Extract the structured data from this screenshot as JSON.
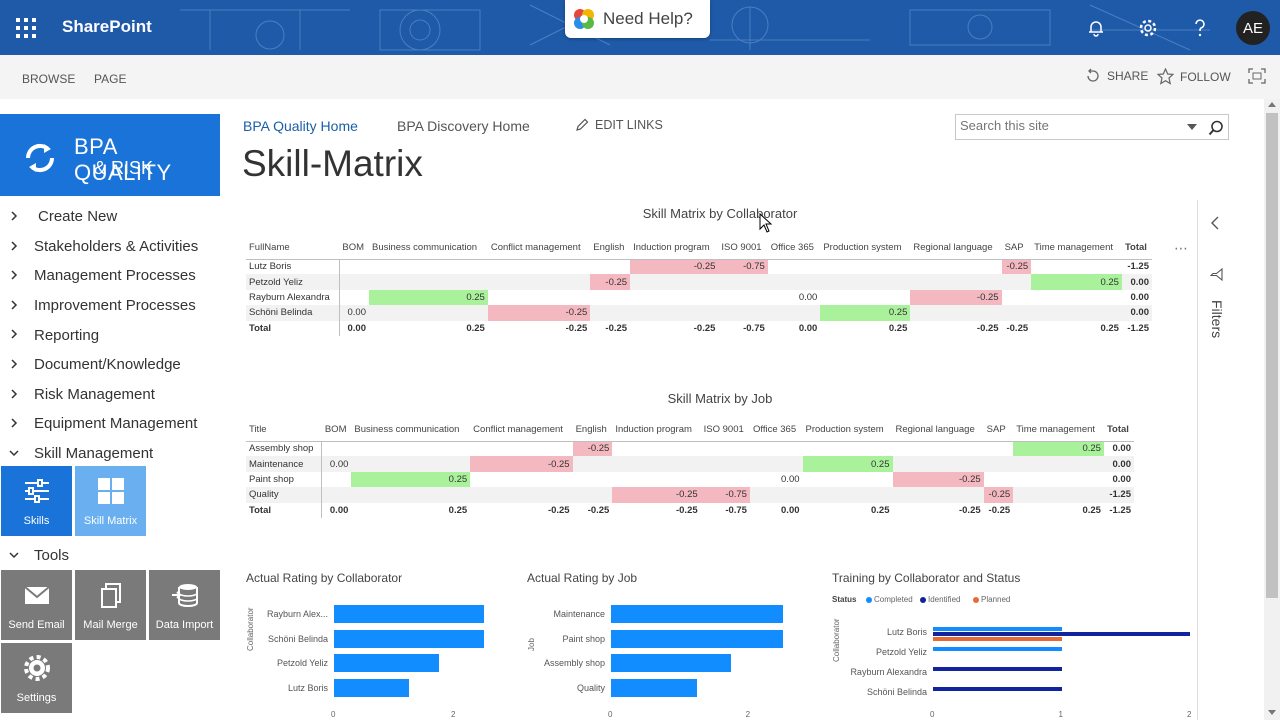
{
  "suite": {
    "brand": "SharePoint",
    "help_label": "Need Help?",
    "avatar_initials": "AE"
  },
  "commands": {
    "browse": "BROWSE",
    "page": "PAGE",
    "share": "SHARE",
    "follow": "FOLLOW"
  },
  "site": {
    "logo_line1": "BPA QUALITY",
    "logo_line2": "& RISK",
    "link_home": "BPA Quality Home",
    "link_discovery": "BPA Discovery Home",
    "edit_links": "EDIT LINKS",
    "title": "Skill-Matrix",
    "search_placeholder": "Search this site"
  },
  "nav": {
    "items": [
      {
        "label": "Create New"
      },
      {
        "label": "Stakeholders & Activities"
      },
      {
        "label": "Management Processes"
      },
      {
        "label": "Improvement Processes"
      },
      {
        "label": "Reporting"
      },
      {
        "label": "Document/Knowledge"
      },
      {
        "label": "Risk Management"
      },
      {
        "label": "Equipment Management"
      },
      {
        "label": "Skill Management"
      }
    ],
    "skill_tiles": [
      {
        "label": "Skills"
      },
      {
        "label": "Skill Matrix"
      }
    ],
    "tools_label": "Tools",
    "tool_tiles": [
      {
        "label": "Send Email"
      },
      {
        "label": "Mail Merge"
      },
      {
        "label": "Data Import"
      },
      {
        "label": "Settings"
      }
    ]
  },
  "report": {
    "filters_label": "Filters",
    "collab": {
      "title": "Skill Matrix by Collaborator",
      "headers": [
        "FullName",
        "BOM",
        "Business communication",
        "Conflict management",
        "English",
        "Induction program",
        "ISO 9001",
        "Office 365",
        "Production system",
        "Regional language",
        "SAP",
        "Time management",
        "Total"
      ],
      "rows": [
        [
          "Lutz Boris",
          "",
          "",
          "",
          "",
          "-0.25",
          "-0.75",
          "",
          "",
          "",
          "-0.25",
          "",
          "-1.25"
        ],
        [
          "Petzold Yeliz",
          "",
          "",
          "",
          "-0.25",
          "",
          "",
          "",
          "",
          "",
          "",
          "0.25",
          "0.00"
        ],
        [
          "Rayburn Alexandra",
          "",
          "0.25",
          "",
          "",
          "",
          "",
          "0.00",
          "",
          "-0.25",
          "",
          "",
          "0.00"
        ],
        [
          "Schöni Belinda",
          "0.00",
          "",
          "-0.25",
          "",
          "",
          "",
          "",
          "0.25",
          "",
          "",
          "",
          "0.00"
        ],
        [
          "Total",
          "0.00",
          "0.25",
          "-0.25",
          "-0.25",
          "-0.25",
          "-0.75",
          "0.00",
          "0.25",
          "-0.25",
          "-0.25",
          "0.25",
          "-1.25"
        ]
      ]
    },
    "job": {
      "title": "Skill Matrix by Job",
      "headers": [
        "Title",
        "BOM",
        "Business communication",
        "Conflict management",
        "English",
        "Induction program",
        "ISO 9001",
        "Office 365",
        "Production system",
        "Regional language",
        "SAP",
        "Time management",
        "Total"
      ],
      "rows": [
        [
          "Assembly shop",
          "",
          "",
          "",
          "-0.25",
          "",
          "",
          "",
          "",
          "",
          "",
          "0.25",
          "0.00"
        ],
        [
          "Maintenance",
          "0.00",
          "",
          "-0.25",
          "",
          "",
          "",
          "",
          "0.25",
          "",
          "",
          "",
          "0.00"
        ],
        [
          "Paint shop",
          "",
          "0.25",
          "",
          "",
          "",
          "",
          "0.00",
          "",
          "-0.25",
          "",
          "",
          "0.00"
        ],
        [
          "Quality",
          "",
          "",
          "",
          "",
          "-0.25",
          "-0.75",
          "",
          "",
          "",
          "-0.25",
          "",
          "-1.25"
        ],
        [
          "Total",
          "0.00",
          "0.25",
          "-0.25",
          "-0.25",
          "-0.25",
          "-0.75",
          "0.00",
          "0.25",
          "-0.25",
          "-0.25",
          "0.25",
          "-1.25"
        ]
      ]
    },
    "colors": {
      "green": "#a9f29b",
      "red": "#f4b8c0",
      "bar": "#118dff",
      "completed": "#118dff",
      "identified": "#12239e",
      "planned": "#e66c37"
    }
  },
  "chart_data": [
    {
      "type": "bar",
      "title": "Actual Rating by Collaborator",
      "ylabel": "Collaborator",
      "categories": [
        "Rayburn Alex...",
        "Schöni Belinda",
        "Petzold Yeliz",
        "Lutz Boris"
      ],
      "values": [
        2.5,
        2.5,
        1.75,
        1.25
      ],
      "xlim": [
        0,
        2.5
      ],
      "xticks": [
        "0",
        "2"
      ]
    },
    {
      "type": "bar",
      "title": "Actual Rating by Job",
      "ylabel": "Job",
      "categories": [
        "Maintenance",
        "Paint shop",
        "Assembly shop",
        "Quality"
      ],
      "values": [
        2.5,
        2.5,
        1.75,
        1.25
      ],
      "xlim": [
        0,
        2.5
      ],
      "xticks": [
        "0",
        "2"
      ]
    },
    {
      "type": "bar",
      "title": "Training by Collaborator and Status",
      "ylabel": "Collaborator",
      "legend_title": "Status",
      "categories": [
        "Lutz Boris",
        "Petzold Yeliz",
        "Rayburn Alexandra",
        "Schöni Belinda"
      ],
      "series": [
        {
          "name": "Completed",
          "values": [
            1,
            1,
            0,
            0
          ]
        },
        {
          "name": "Identified",
          "values": [
            2,
            0,
            1,
            1
          ]
        },
        {
          "name": "Planned",
          "values": [
            1,
            0,
            0,
            0
          ]
        }
      ],
      "xlim": [
        0,
        2
      ],
      "xticks": [
        "0",
        "1",
        "2"
      ]
    }
  ]
}
